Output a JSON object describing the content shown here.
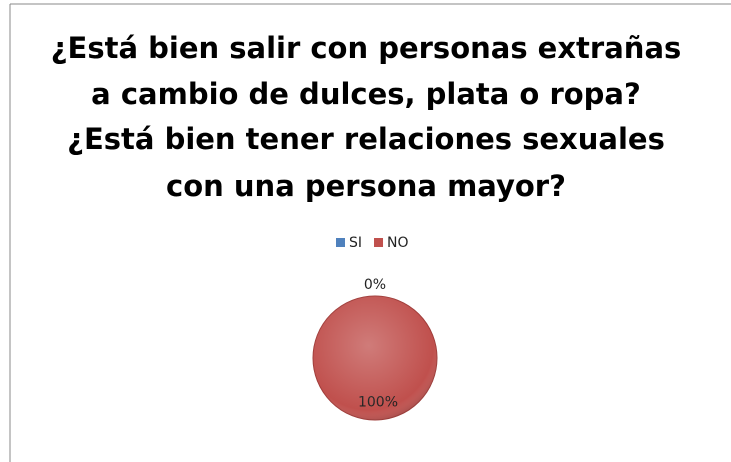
{
  "chart_data": {
    "type": "pie",
    "title": [
      "¿Está bien salir con personas extrañas",
      "a cambio de dulces, plata o ropa?",
      "¿Está bien tener relaciones sexuales",
      "con una persona mayor?"
    ],
    "categories": [
      "SI",
      "NO"
    ],
    "values": [
      0,
      100
    ],
    "value_labels": [
      "0%",
      "100%"
    ],
    "colors": [
      "#4f81bd",
      "#c0504d"
    ],
    "legend": "top"
  }
}
